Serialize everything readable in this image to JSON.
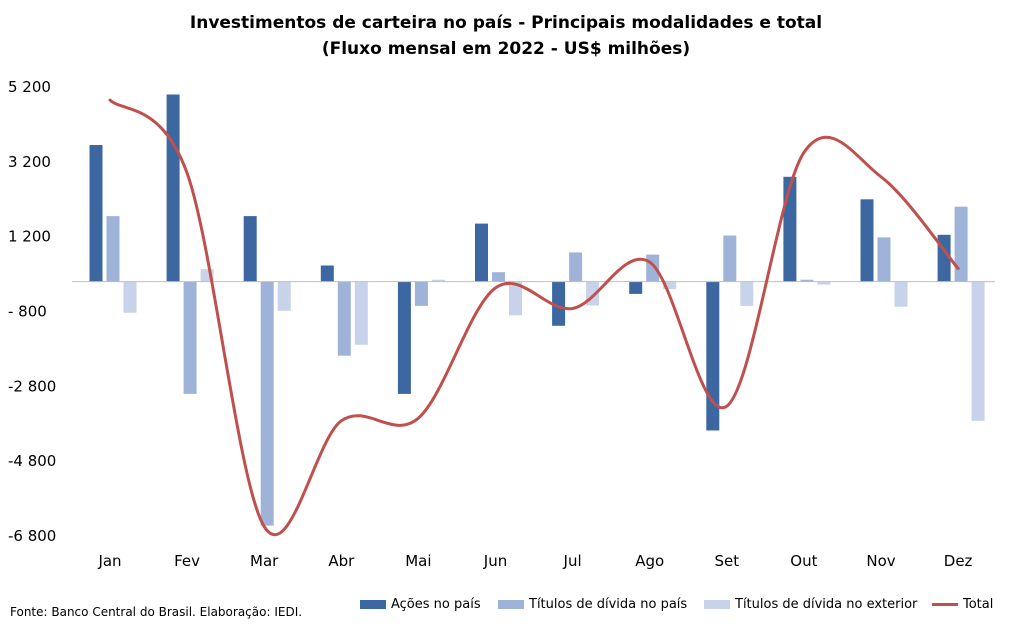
{
  "chart_data": {
    "type": "bar",
    "title": "Investimentos de carteira no país  - Principais modalidades  e total",
    "subtitle": "(Fluxo mensal em 2022 - US$ milhões)",
    "categories": [
      "Jan",
      "Fev",
      "Mar",
      "Abr",
      "Mai",
      "Jun",
      "Jul",
      "Ago",
      "Set",
      "Out",
      "Nov",
      "Dez"
    ],
    "y_ticks": [
      5200,
      3200,
      1200,
      -800,
      -2800,
      -4800,
      -6800
    ],
    "y_tick_labels": [
      "5 200",
      "3 200",
      "1 200",
      "- 800",
      "-2 800",
      "-4 800",
      "-6 800"
    ],
    "ylim": [
      -6800,
      5200
    ],
    "series": [
      {
        "name": "Ações no país",
        "kind": "bar",
        "color": "#3c67a0",
        "values": [
          3650,
          5000,
          1750,
          430,
          -3000,
          1550,
          -1180,
          -330,
          -3980,
          2800,
          2200,
          1250
        ]
      },
      {
        "name": "Títulos de dívida no país",
        "kind": "bar",
        "color": "#9fb3d8",
        "values": [
          1750,
          -3000,
          -6520,
          -1980,
          -650,
          250,
          780,
          720,
          1230,
          50,
          1180,
          2000
        ]
      },
      {
        "name": "Títulos de dívida no exterior",
        "kind": "bar",
        "color": "#c8d2ea",
        "values": [
          -830,
          330,
          -780,
          -1690,
          50,
          -900,
          -640,
          -200,
          -650,
          -80,
          -670,
          -3720
        ]
      },
      {
        "name": "Total",
        "kind": "line",
        "color": "#c0504d",
        "values": [
          4850,
          2900,
          -6550,
          -3720,
          -3650,
          -170,
          -720,
          520,
          -3330,
          3450,
          2800,
          350
        ]
      }
    ],
    "legend_position": "bottom-right",
    "grid": false
  },
  "source_note": "Fonte: Banco Central do Brasil. Elaboração: IEDI."
}
